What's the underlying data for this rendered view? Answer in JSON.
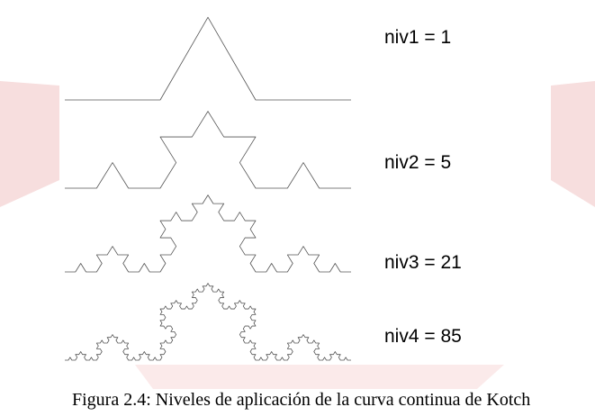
{
  "levels": [
    {
      "label": "niv1 = 1",
      "level": 1
    },
    {
      "label": "niv2 = 5",
      "level": 2
    },
    {
      "label": "niv3 = 21",
      "level": 3
    },
    {
      "label": "niv4 = 85",
      "level": 4
    }
  ],
  "caption": "Figura 2.4: Niveles de aplicación de la curva continua de Kotch",
  "colors": {
    "curve": "#555555",
    "watermark": "#f7dede"
  }
}
